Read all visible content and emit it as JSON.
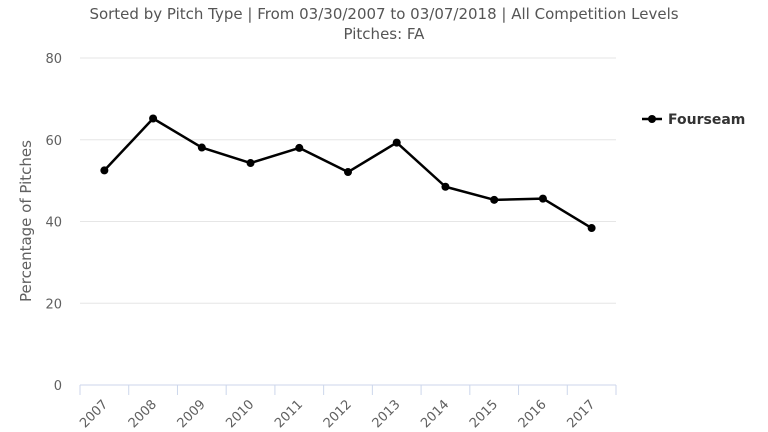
{
  "chart_data": {
    "type": "line",
    "title": "Sorted by Pitch Type | From 03/30/2007 to 03/07/2018 | All Competition Levels",
    "subtitle": "Pitches: FA",
    "ylabel": "Percentage of Pitches",
    "xlabel": "",
    "categories": [
      "2007",
      "2008",
      "2009",
      "2010",
      "2011",
      "2012",
      "2013",
      "2014",
      "2015",
      "2016",
      "2017"
    ],
    "ylim": [
      0,
      80
    ],
    "yticks": [
      0,
      20,
      40,
      60,
      80
    ],
    "grid": true,
    "legend_position": "right",
    "series": [
      {
        "name": "Fourseam",
        "color": "#000000",
        "values": [
          52.5,
          65.2,
          58.1,
          54.3,
          58.0,
          52.1,
          59.3,
          48.5,
          45.3,
          45.6,
          38.4
        ]
      }
    ]
  }
}
